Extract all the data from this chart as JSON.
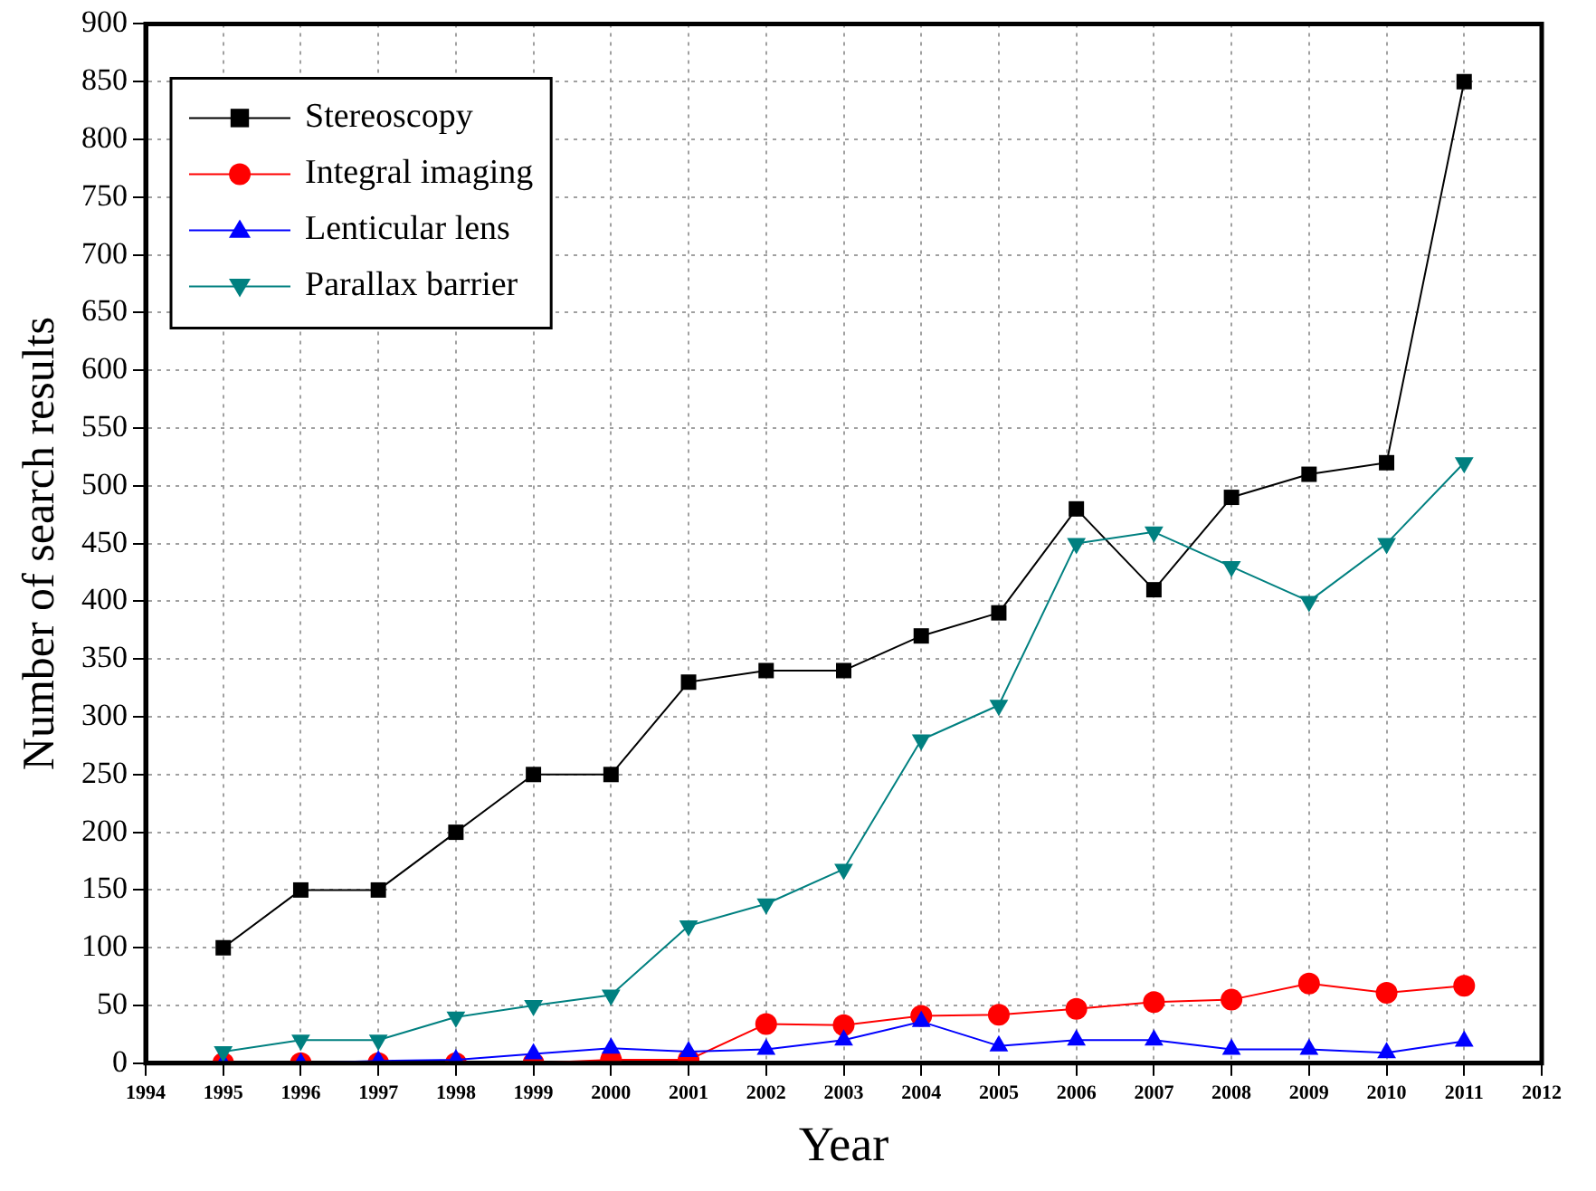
{
  "chart_data": {
    "type": "line",
    "xlabel": "Year",
    "ylabel": "Number of search results",
    "x": [
      1995,
      1996,
      1997,
      1998,
      1999,
      2000,
      2001,
      2002,
      2003,
      2004,
      2005,
      2006,
      2007,
      2008,
      2009,
      2010,
      2011
    ],
    "xlim": [
      1994,
      2012
    ],
    "xticks": [
      1994,
      1995,
      1996,
      1997,
      1998,
      1999,
      2000,
      2001,
      2002,
      2003,
      2004,
      2005,
      2006,
      2007,
      2008,
      2009,
      2010,
      2011,
      2012
    ],
    "ylim": [
      0,
      900
    ],
    "yticks": [
      0,
      50,
      100,
      150,
      200,
      250,
      300,
      350,
      400,
      450,
      500,
      550,
      600,
      650,
      700,
      750,
      800,
      850,
      900
    ],
    "grid": true,
    "legend": "top left",
    "line_style": "solid",
    "series": [
      {
        "name": "Stereoscopy",
        "color": "#000000",
        "marker": "square",
        "values": [
          100,
          150,
          150,
          200,
          250,
          250,
          330,
          340,
          340,
          370,
          390,
          480,
          410,
          490,
          510,
          520,
          850
        ]
      },
      {
        "name": "Integral imaging",
        "color": "#ff0000",
        "marker": "circle",
        "values": [
          0,
          0,
          0,
          0,
          0,
          3,
          3,
          34,
          33,
          41,
          42,
          47,
          53,
          55,
          69,
          61,
          67
        ]
      },
      {
        "name": "Lenticular lens",
        "color": "#0000ff",
        "marker": "triangle",
        "values": [
          0,
          0,
          2,
          3,
          8,
          13,
          10,
          12,
          20,
          36,
          15,
          20,
          20,
          12,
          12,
          9,
          19
        ]
      },
      {
        "name": "Parallax barrier",
        "color": "#008080",
        "marker": "triangle-down",
        "values": [
          10,
          20,
          20,
          40,
          50,
          59,
          119,
          138,
          168,
          280,
          310,
          450,
          460,
          430,
          400,
          450,
          520
        ]
      }
    ]
  }
}
